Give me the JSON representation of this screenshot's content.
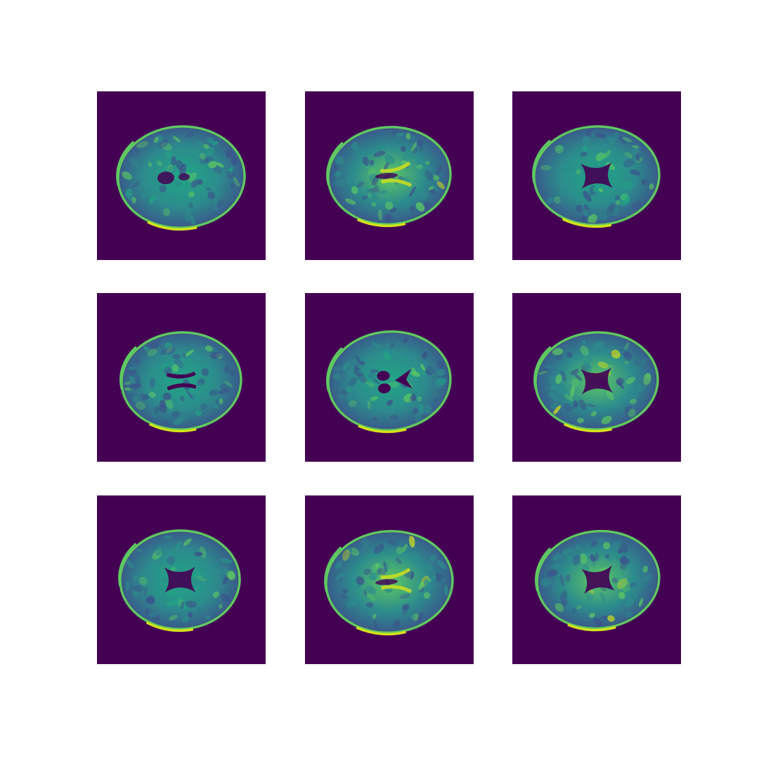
{
  "colormap": {
    "background": "#440154",
    "dark": "#3b2a6b",
    "low": "#3b528b",
    "mid": "#2c8c8c",
    "highmid": "#21a685",
    "high": "#5ec962",
    "peak": "#d5e21a"
  },
  "slices": [
    {
      "variant": "ventricles-small"
    },
    {
      "variant": "bright-white-matter"
    },
    {
      "variant": "x-ventricles"
    },
    {
      "variant": "butterfly"
    },
    {
      "variant": "split-ventricles"
    },
    {
      "variant": "x-ventricles-bright"
    },
    {
      "variant": "x-ventricles-dim"
    },
    {
      "variant": "bright-white-matter-2"
    },
    {
      "variant": "x-ventricles-bright-2"
    }
  ]
}
